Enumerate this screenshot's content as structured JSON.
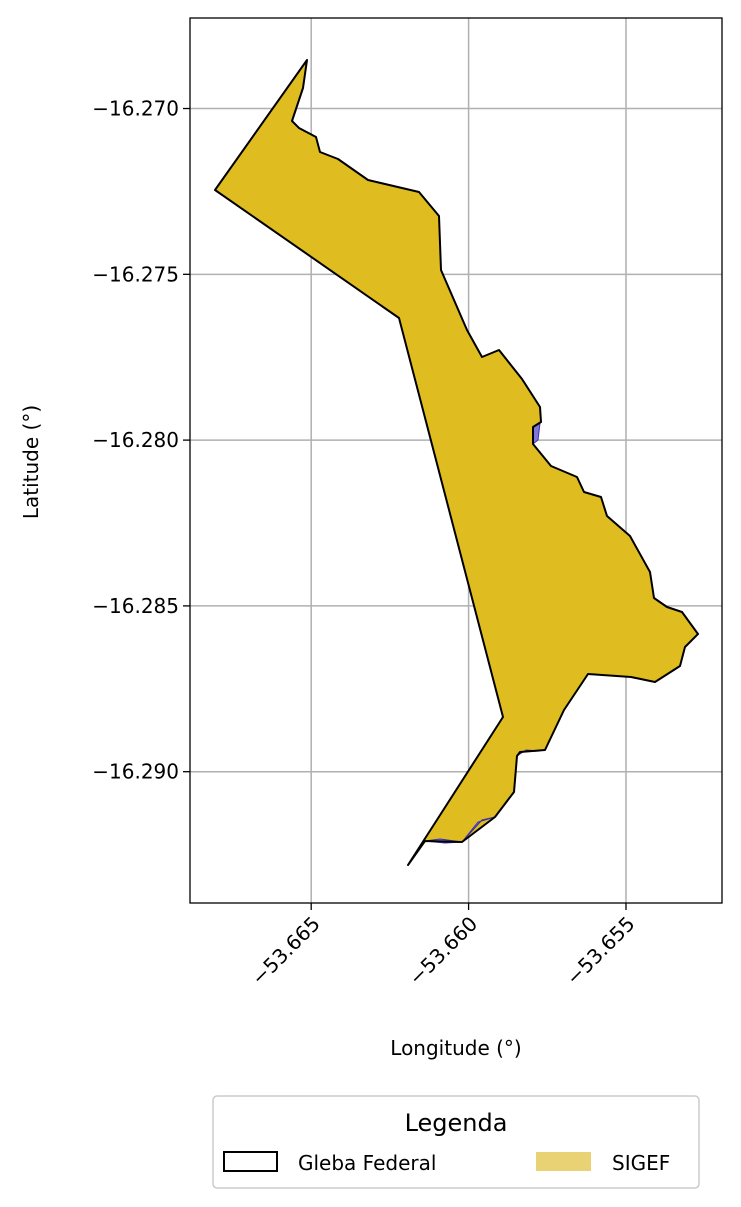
{
  "chart_data": {
    "type": "map",
    "xlabel": "Longitude (°)",
    "ylabel": "Latitude (°)",
    "xlim": [
      -53.66885,
      -53.65195
    ],
    "ylim": [
      -16.29396,
      -16.26727
    ],
    "grid": true,
    "x_ticks": [
      {
        "value": -53.665,
        "label": "−53.665"
      },
      {
        "value": -53.66,
        "label": "−53.660"
      },
      {
        "value": -53.655,
        "label": "−53.655"
      }
    ],
    "y_ticks": [
      {
        "value": -16.27,
        "label": "−16.270"
      },
      {
        "value": -16.275,
        "label": "−16.275"
      },
      {
        "value": -16.28,
        "label": "−16.280"
      },
      {
        "value": -16.285,
        "label": "−16.285"
      },
      {
        "value": -16.29,
        "label": "−16.290"
      }
    ],
    "legend": {
      "title": "Legenda",
      "placement": "bottom-center",
      "entries": [
        {
          "label": "Gleba Federal",
          "style": "outline",
          "color": "#000000"
        },
        {
          "label": "SIGEF",
          "style": "fill",
          "color": "#e8d273"
        }
      ]
    },
    "layers": [
      {
        "name": "SIGEF",
        "fill": "#dfbd20",
        "stroke": "#3a2fb0",
        "coordinates": [
          [
            -53.6651,
            -16.26825
          ],
          [
            -53.6652,
            -16.26894
          ],
          [
            -53.6656,
            -16.27015
          ],
          [
            -53.6654,
            -16.27032
          ],
          [
            -53.6649,
            -16.27058
          ],
          [
            -53.6647,
            -16.27078
          ],
          [
            -53.6644,
            -16.27118
          ],
          [
            -53.6635,
            -16.27188
          ],
          [
            -53.6618,
            -16.27231
          ],
          [
            -53.6609,
            -16.27302
          ],
          [
            -53.66085,
            -16.27466
          ],
          [
            -53.66,
            -16.2765
          ],
          [
            -53.6595,
            -16.27737
          ],
          [
            -53.65895,
            -16.27716
          ],
          [
            -53.6583,
            -16.27798
          ],
          [
            -53.6578,
            -16.27883
          ],
          [
            -53.65775,
            -16.27933
          ],
          [
            -53.65815,
            -16.27942
          ],
          [
            -53.65825,
            -16.2796
          ],
          [
            -53.6582,
            -16.28005
          ],
          [
            -53.6575,
            -16.28069
          ],
          [
            -53.6567,
            -16.28094
          ],
          [
            -53.6565,
            -16.28139
          ],
          [
            -53.6561,
            -16.28157
          ],
          [
            -53.6559,
            -16.28218
          ],
          [
            -53.6553,
            -16.28275
          ],
          [
            -53.65485,
            -16.28384
          ],
          [
            -53.65475,
            -16.28463
          ],
          [
            -53.65435,
            -16.28501
          ],
          [
            -53.65405,
            -16.28517
          ],
          [
            -53.6536,
            -16.28579
          ],
          [
            -53.65385,
            -16.28615
          ],
          [
            -53.65395,
            -16.28676
          ],
          [
            -53.6545,
            -16.28725
          ],
          [
            -53.6551,
            -16.28699
          ],
          [
            -53.6561,
            -16.28695
          ],
          [
            -53.6569,
            -16.28692
          ],
          [
            -53.6575,
            -16.28813
          ],
          [
            -53.658,
            -16.28933
          ],
          [
            -53.6584,
            -16.28943
          ],
          [
            -53.6588,
            -16.28937
          ],
          [
            -53.659,
            -16.28955
          ],
          [
            -53.65915,
            -16.29063
          ],
          [
            -53.6595,
            -16.29126
          ],
          [
            -53.65995,
            -16.29148
          ],
          [
            -53.6601,
            -16.29212
          ],
          [
            -53.66075,
            -16.29217
          ],
          [
            -53.6614,
            -16.29212
          ],
          [
            -53.662,
            -16.29181
          ],
          [
            -53.6627,
            -16.29165
          ],
          [
            -53.66405,
            -16.2896
          ],
          [
            -53.6649,
            -16.2883
          ],
          [
            -53.6653,
            -16.28778
          ],
          [
            -53.6665,
            -16.2853
          ],
          [
            -53.6672,
            -16.2842
          ],
          [
            -53.6678,
            -16.28246
          ],
          [
            -53.6682,
            -16.28071
          ],
          [
            -53.6683,
            -16.2788
          ],
          [
            -53.6676,
            -16.2776
          ],
          [
            -53.6672,
            -16.2767
          ],
          [
            -53.6667,
            -16.2751
          ],
          [
            -53.666,
            -16.2739
          ],
          [
            -53.6652,
            -16.27296
          ],
          [
            -53.6648,
            -16.27202
          ],
          [
            -53.6648,
            -16.2705
          ],
          [
            -53.6651,
            -16.2688
          ]
        ],
        "sigef_polygon": [
          [
            -53.66505,
            -16.26825
          ],
          [
            -53.66515,
            -16.26894
          ],
          [
            -53.66535,
            -16.27015
          ],
          [
            -53.6651,
            -16.2705
          ],
          [
            -53.6643,
            -16.27118
          ],
          [
            -53.6632,
            -16.27188
          ],
          [
            -53.662,
            -16.2723
          ],
          [
            -53.6609,
            -16.27302
          ],
          [
            -53.66085,
            -16.27466
          ],
          [
            -53.66,
            -16.2765
          ],
          [
            -53.6595,
            -16.27737
          ],
          [
            -53.65895,
            -16.27716
          ],
          [
            -53.6583,
            -16.27798
          ],
          [
            -53.6578,
            -16.27883
          ],
          [
            -53.6578,
            -16.2794
          ],
          [
            -53.65825,
            -16.2796
          ],
          [
            -53.6582,
            -16.28005
          ],
          [
            -53.6575,
            -16.28069
          ],
          [
            -53.6567,
            -16.28094
          ],
          [
            -53.6565,
            -16.28139
          ],
          [
            -53.6561,
            -16.28157
          ],
          [
            -53.6559,
            -16.28218
          ],
          [
            -53.6553,
            -16.28275
          ],
          [
            -53.65485,
            -16.28384
          ],
          [
            -53.65475,
            -16.28463
          ],
          [
            -53.65435,
            -16.28501
          ],
          [
            -53.65405,
            -16.28517
          ],
          [
            -53.6536,
            -16.28579
          ],
          [
            -53.65385,
            -16.28615
          ],
          [
            -53.65395,
            -16.28676
          ],
          [
            -53.6545,
            -16.28725
          ],
          [
            -53.6551,
            -16.28699
          ],
          [
            -53.6561,
            -16.28695
          ],
          [
            -53.6569,
            -16.28692
          ],
          [
            -53.6575,
            -16.28813
          ],
          [
            -53.658,
            -16.28933
          ],
          [
            -53.6588,
            -16.28937
          ],
          [
            -53.65915,
            -16.29063
          ],
          [
            -53.6595,
            -16.29126
          ],
          [
            -53.6601,
            -16.29212
          ],
          [
            -53.6614,
            -16.29212
          ],
          [
            -53.6626,
            -16.2921
          ],
          [
            -53.6618,
            -16.2928
          ],
          [
            -53.6612,
            -16.2923
          ],
          [
            -53.66,
            -16.2906
          ],
          [
            -53.659,
            -16.2883
          ],
          [
            -53.6596,
            -16.287
          ],
          [
            -53.6601,
            -16.2841
          ],
          [
            -53.6608,
            -16.2815
          ],
          [
            -53.6617,
            -16.2786
          ],
          [
            -53.6624,
            -16.2761
          ],
          [
            -53.6633,
            -16.2752
          ],
          [
            -53.6654,
            -16.2741
          ],
          [
            -53.66755,
            -16.2722
          ],
          [
            -53.6658,
            -16.2703
          ],
          [
            -53.66505,
            -16.26825
          ]
        ]
      },
      {
        "name": "Gleba Federal",
        "fill": "none",
        "stroke": "#000000",
        "coordinates": [
          [
            -53.6651,
            -16.26825
          ],
          [
            -53.6652,
            -16.26894
          ],
          [
            -53.66545,
            -16.27015
          ],
          [
            -53.66505,
            -16.27045
          ],
          [
            -53.66475,
            -16.27064
          ],
          [
            -53.66465,
            -16.2711
          ],
          [
            -53.6642,
            -16.27128
          ],
          [
            -53.6632,
            -16.2719
          ],
          [
            -53.662,
            -16.2723
          ],
          [
            -53.6609,
            -16.27302
          ],
          [
            -53.66085,
            -16.27466
          ],
          [
            -53.66,
            -16.2765
          ],
          [
            -53.6595,
            -16.27737
          ],
          [
            -53.65895,
            -16.27716
          ],
          [
            -53.6583,
            -16.27798
          ],
          [
            -53.6578,
            -16.27883
          ],
          [
            -53.6578,
            -16.2794
          ],
          [
            -53.65825,
            -16.2796
          ],
          [
            -53.6582,
            -16.28005
          ],
          [
            -53.6575,
            -16.28069
          ],
          [
            -53.6567,
            -16.28094
          ],
          [
            -53.6565,
            -16.28139
          ],
          [
            -53.6561,
            -16.28157
          ],
          [
            -53.6559,
            -16.28218
          ],
          [
            -53.6553,
            -16.28275
          ],
          [
            -53.65485,
            -16.28384
          ],
          [
            -53.65475,
            -16.28463
          ],
          [
            -53.65435,
            -16.28501
          ],
          [
            -53.65405,
            -16.28517
          ],
          [
            -53.6536,
            -16.28579
          ],
          [
            -53.65385,
            -16.28615
          ],
          [
            -53.65395,
            -16.28676
          ],
          [
            -53.6545,
            -16.28725
          ],
          [
            -53.6551,
            -16.28699
          ],
          [
            -53.6561,
            -16.28695
          ],
          [
            -53.6569,
            -16.28692
          ],
          [
            -53.6575,
            -16.28813
          ],
          [
            -53.658,
            -16.28933
          ],
          [
            -53.6588,
            -16.28937
          ],
          [
            -53.65915,
            -16.29063
          ],
          [
            -53.6595,
            -16.29126
          ],
          [
            -53.6601,
            -16.29212
          ],
          [
            -53.6614,
            -16.29212
          ],
          [
            -53.6626,
            -16.2921
          ]
        ]
      }
    ]
  }
}
